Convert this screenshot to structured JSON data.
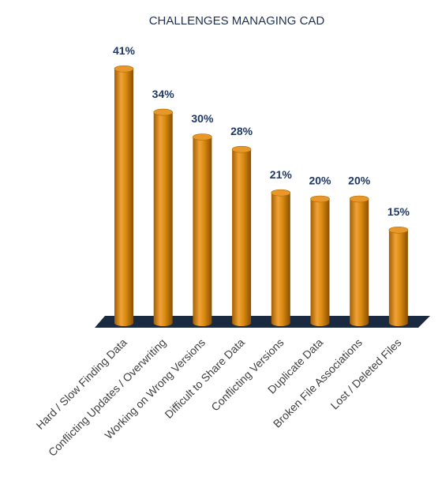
{
  "chart_data": {
    "type": "bar3d",
    "title": "CHALLENGES MANAGING CAD",
    "categories": [
      "Hard / Slow Finding Data",
      "Conflicting Updates / Overwriting",
      "Working on Wrong Versions",
      "Difficult to Share Data",
      "Conflicting Versions",
      "Duplicate Data",
      "Broken File Associations",
      "Lost / Deleted Files"
    ],
    "values": [
      41,
      34,
      30,
      28,
      21,
      20,
      20,
      15
    ],
    "value_labels": [
      "41%",
      "34%",
      "30%",
      "28%",
      "21%",
      "20%",
      "20%",
      "15%"
    ],
    "color": "#d98a10"
  }
}
